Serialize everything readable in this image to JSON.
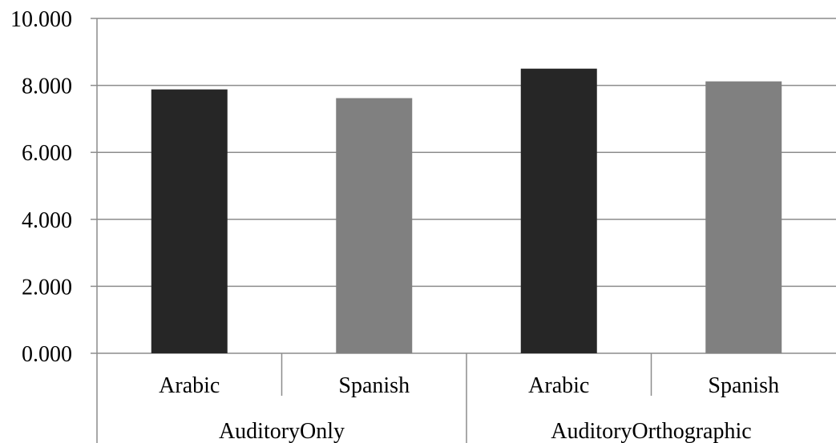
{
  "chart_data": {
    "type": "bar",
    "groups": [
      {
        "label": "AuditoryOnly",
        "categories": [
          {
            "label": "Arabic",
            "value": 7.88,
            "color": "#262626"
          },
          {
            "label": "Spanish",
            "value": 7.62,
            "color": "#808080"
          }
        ]
      },
      {
        "label": "AuditoryOrthographic",
        "categories": [
          {
            "label": "Arabic",
            "value": 8.5,
            "color": "#262626"
          },
          {
            "label": "Spanish",
            "value": 8.12,
            "color": "#808080"
          }
        ]
      }
    ],
    "yticks": [
      "0.000",
      "2.000",
      "4.000",
      "6.000",
      "8.000",
      "10.000"
    ],
    "ylim": [
      0,
      10
    ],
    "grid": true,
    "title": "",
    "xlabel": "",
    "ylabel": ""
  }
}
